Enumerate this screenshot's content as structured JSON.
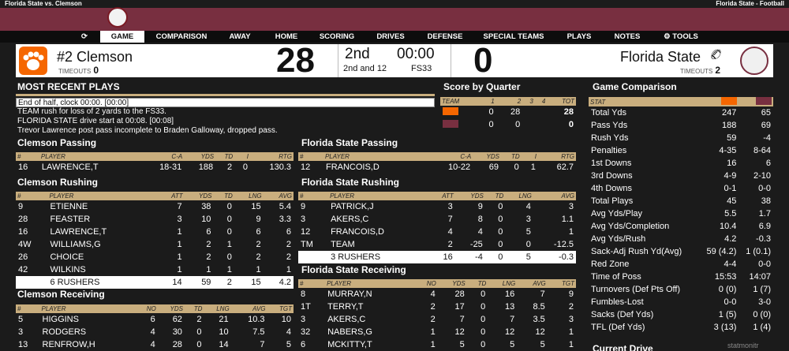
{
  "topbar": {
    "left": "Florida State vs. Clemson",
    "right": "Florida State - Football"
  },
  "nav": [
    {
      "label": "",
      "name": "refresh"
    },
    {
      "label": "GAME",
      "name": "game"
    },
    {
      "label": "COMPARISON",
      "name": "comparison"
    },
    {
      "label": "AWAY",
      "name": "away"
    },
    {
      "label": "HOME",
      "name": "home"
    },
    {
      "label": "SCORING",
      "name": "scoring"
    },
    {
      "label": "DRIVES",
      "name": "drives"
    },
    {
      "label": "DEFENSE",
      "name": "defense"
    },
    {
      "label": "SPECIAL TEAMS",
      "name": "special-teams"
    },
    {
      "label": "PLAYS",
      "name": "plays"
    },
    {
      "label": "NOTES",
      "name": "notes"
    },
    {
      "label": "TOOLS",
      "name": "tools"
    }
  ],
  "score": {
    "away": {
      "name": "#2 Clemson",
      "timeouts_label": "TIMEOUTS",
      "timeouts": "0",
      "score": "28",
      "color": "#f56600"
    },
    "home": {
      "name": "Florida State",
      "timeouts_label": "TIMEOUTS",
      "timeouts": "2",
      "score": "0",
      "color": "#782f40"
    },
    "period": "2nd",
    "clock": "00:00",
    "down": "2nd and 12",
    "spot": "FS33"
  },
  "recent": {
    "title": "MOST RECENT PLAYS",
    "plays": [
      "End of half, clock 00:00. [00:00]",
      "TEAM rush for loss of 2 yards to the FS33.",
      "FLORIDA STATE drive start at 00:08. [00:08]",
      "Trevor Lawrence post pass incomplete to Braden Galloway, dropped pass."
    ]
  },
  "quarters": {
    "title": "Score by Quarter",
    "headers": [
      "TEAM",
      "1",
      "2",
      "3",
      "4",
      "TOT"
    ],
    "rows": [
      [
        "",
        "0",
        "28",
        "",
        "",
        "28"
      ],
      [
        "",
        "0",
        "0",
        "",
        "",
        "0"
      ]
    ]
  },
  "comparison": {
    "title": "Game Comparison",
    "header": "STAT",
    "rows": [
      [
        "Total Yds",
        "247",
        "65"
      ],
      [
        "Pass Yds",
        "188",
        "69"
      ],
      [
        "Rush Yds",
        "59",
        "-4"
      ],
      [
        "Penalties",
        "4-35",
        "8-64"
      ],
      [
        "1st Downs",
        "16",
        "6"
      ],
      [
        "3rd Downs",
        "4-9",
        "2-10"
      ],
      [
        "4th Downs",
        "0-1",
        "0-0"
      ],
      [
        "Total Plays",
        "45",
        "38"
      ],
      [
        "Avg Yds/Play",
        "5.5",
        "1.7"
      ],
      [
        "Avg Yds/Completion",
        "10.4",
        "6.9"
      ],
      [
        "Avg Yds/Rush",
        "4.2",
        "-0.3"
      ],
      [
        "Sack-Adj Rush Yd(Avg)",
        "59 (4.2)",
        "1 (0.1)"
      ],
      [
        "Red Zone",
        "4-4",
        "0-0"
      ],
      [
        "Time of Poss",
        "15:53",
        "14:07"
      ],
      [
        "Turnovers (Def Pts Off)",
        "0 (0)",
        "1 (7)"
      ],
      [
        "Fumbles-Lost",
        "0-0",
        "3-0"
      ],
      [
        "Sacks (Def Yds)",
        "1 (5)",
        "0 (0)"
      ],
      [
        "TFL (Def Yds)",
        "3 (13)",
        "1 (4)"
      ]
    ],
    "next_title": "Current Drive"
  },
  "cle_pass": {
    "title": "Clemson Passing",
    "headers": [
      "#",
      "PLAYER",
      "C-A",
      "YDS",
      "TD",
      "I",
      "RTG"
    ],
    "rows": [
      [
        "16",
        "LAWRENCE,T",
        "18-31",
        "188",
        "2",
        "0",
        "130.3"
      ]
    ]
  },
  "fsu_pass": {
    "title": "Florida State Passing",
    "headers": [
      "#",
      "PLAYER",
      "C-A",
      "YDS",
      "TD",
      "I",
      "RTG"
    ],
    "rows": [
      [
        "12",
        "FRANCOIS,D",
        "10-22",
        "69",
        "0",
        "1",
        "62.7"
      ]
    ]
  },
  "cle_rush": {
    "title": "Clemson Rushing",
    "headers": [
      "#",
      "PLAYER",
      "ATT",
      "YDS",
      "TD",
      "LNG",
      "AVG"
    ],
    "rows": [
      [
        "9",
        "ETIENNE",
        "7",
        "38",
        "0",
        "15",
        "5.4"
      ],
      [
        "28",
        "FEASTER",
        "3",
        "10",
        "0",
        "9",
        "3.3"
      ],
      [
        "16",
        "LAWRENCE,T",
        "1",
        "6",
        "0",
        "6",
        "6"
      ],
      [
        "4W",
        "WILLIAMS,G",
        "1",
        "2",
        "1",
        "2",
        "2"
      ],
      [
        "26",
        "CHOICE",
        "1",
        "2",
        "0",
        "2",
        "2"
      ],
      [
        "42",
        "WILKINS",
        "1",
        "1",
        "1",
        "1",
        "1"
      ]
    ],
    "total": [
      "",
      "6 RUSHERS",
      "14",
      "59",
      "2",
      "15",
      "4.2"
    ]
  },
  "fsu_rush": {
    "title": "Florida State Rushing",
    "headers": [
      "#",
      "PLAYER",
      "ATT",
      "YDS",
      "TD",
      "LNG",
      "AVG"
    ],
    "rows": [
      [
        "9",
        "PATRICK,J",
        "3",
        "9",
        "0",
        "4",
        "3"
      ],
      [
        "3",
        "AKERS,C",
        "7",
        "8",
        "0",
        "3",
        "1.1"
      ],
      [
        "12",
        "FRANCOIS,D",
        "4",
        "4",
        "0",
        "5",
        "1"
      ],
      [
        "TM",
        "TEAM",
        "2",
        "-25",
        "0",
        "0",
        "-12.5"
      ]
    ],
    "total": [
      "",
      "3 RUSHERS",
      "16",
      "-4",
      "0",
      "5",
      "-0.3"
    ]
  },
  "cle_rec": {
    "title": "Clemson Receiving",
    "headers": [
      "#",
      "PLAYER",
      "NO",
      "YDS",
      "TD",
      "LNG",
      "AVG",
      "TGT"
    ],
    "rows": [
      [
        "5",
        "HIGGINS",
        "6",
        "62",
        "2",
        "21",
        "10.3",
        "10"
      ],
      [
        "3",
        "RODGERS",
        "4",
        "30",
        "0",
        "10",
        "7.5",
        "4"
      ],
      [
        "13",
        "RENFROW,H",
        "4",
        "28",
        "0",
        "14",
        "7",
        "5"
      ]
    ]
  },
  "fsu_rec": {
    "title": "Florida State Receiving",
    "headers": [
      "#",
      "PLAYER",
      "NO",
      "YDS",
      "TD",
      "LNG",
      "AVG",
      "TGT"
    ],
    "rows": [
      [
        "8",
        "MURRAY,N",
        "4",
        "28",
        "0",
        "16",
        "7",
        "9"
      ],
      [
        "1T",
        "TERRY,T",
        "2",
        "17",
        "0",
        "13",
        "8.5",
        "2"
      ],
      [
        "3",
        "AKERS,C",
        "2",
        "7",
        "0",
        "7",
        "3.5",
        "3"
      ],
      [
        "32",
        "NABERS,G",
        "1",
        "12",
        "0",
        "12",
        "12",
        "1"
      ],
      [
        "6",
        "MCKITTY,T",
        "1",
        "5",
        "0",
        "5",
        "5",
        "1"
      ]
    ]
  },
  "watermark": "statmonitr"
}
